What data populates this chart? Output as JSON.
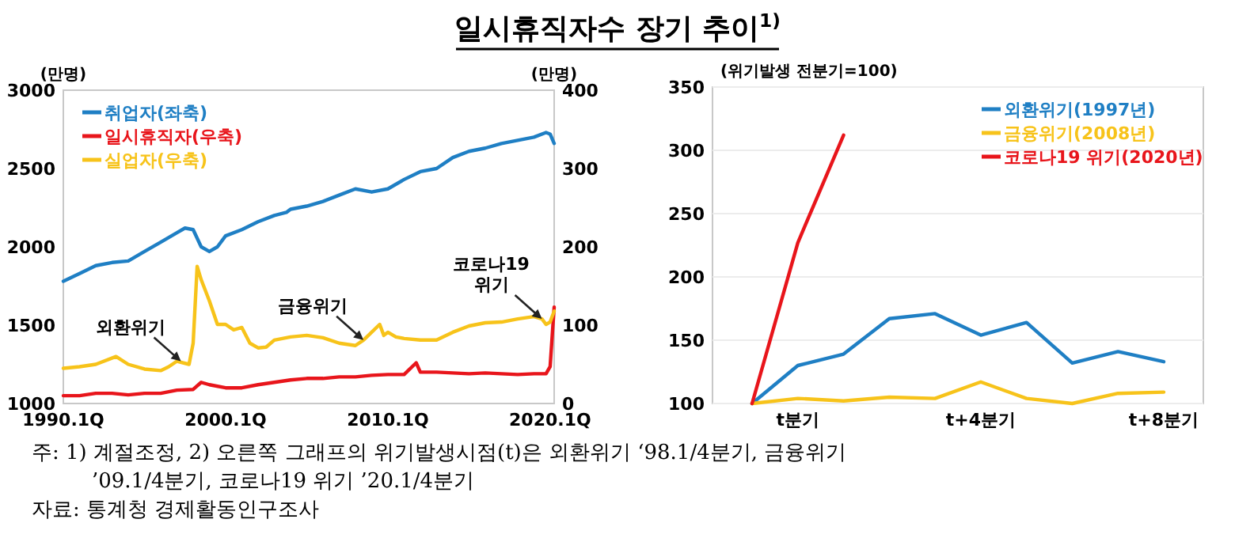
{
  "chart_data": [
    {
      "type": "line",
      "title": "일시휴직자수 장기 추이$^{1)}$",
      "ylabel": "(만명)",
      "y2label": "(만명)",
      "xlim": [
        "1990-01",
        "2020-04"
      ],
      "xticks": [
        {
          "value": "1990-01",
          "label": "1990.1Q"
        },
        {
          "value": "2000-01",
          "label": "2000.1Q"
        },
        {
          "value": "2010-01",
          "label": "2010.1Q"
        },
        {
          "value": "2020-01",
          "label": "2020.1Q"
        }
      ],
      "ylim": [
        1000,
        3000
      ],
      "yticks": [
        1000,
        1500,
        2000,
        2500,
        3000
      ],
      "y2lim": [
        0,
        400
      ],
      "y2ticks": [
        0,
        100,
        200,
        300,
        400
      ],
      "legend": "top left",
      "series": [
        {
          "name": "취업자(좌축)",
          "color": "#1f7fc4",
          "x": [
            "1990-01",
            "1991-01",
            "1992-01",
            "1993-01",
            "1994-01",
            "1995-01",
            "1996-01",
            "1997-01",
            "1997-07",
            "1998-01",
            "1998-07",
            "1999-01",
            "1999-07",
            "2000-01",
            "2001-01",
            "2002-01",
            "2003-01",
            "2003-10",
            "2004-01",
            "2005-01",
            "2006-01",
            "2007-01",
            "2008-01",
            "2009-01",
            "2010-01",
            "2011-01",
            "2012-01",
            "2013-01",
            "2014-01",
            "2015-01",
            "2016-01",
            "2017-01",
            "2018-01",
            "2019-01",
            "2019-10",
            "2020-01",
            "2020-04"
          ],
          "values": [
            1780,
            1830,
            1880,
            1900,
            1910,
            1970,
            2030,
            2090,
            2120,
            2110,
            2000,
            1970,
            2000,
            2070,
            2110,
            2160,
            2200,
            2220,
            2240,
            2260,
            2290,
            2330,
            2370,
            2350,
            2370,
            2430,
            2480,
            2500,
            2570,
            2610,
            2630,
            2660,
            2680,
            2700,
            2730,
            2720,
            2660
          ]
        },
        {
          "name": "일시휴직자(우축)",
          "color": "#e8151b",
          "axis": "y2",
          "x": [
            "1990-01",
            "1991-01",
            "1992-01",
            "1993-01",
            "1994-01",
            "1995-01",
            "1996-01",
            "1997-01",
            "1998-01",
            "1998-07",
            "1999-01",
            "2000-01",
            "2001-01",
            "2002-01",
            "2003-01",
            "2004-01",
            "2005-01",
            "2006-01",
            "2007-01",
            "2008-01",
            "2009-01",
            "2010-01",
            "2011-01",
            "2011-10",
            "2012-01",
            "2013-01",
            "2014-01",
            "2015-01",
            "2016-01",
            "2017-01",
            "2018-01",
            "2019-01",
            "2019-10",
            "2020-01",
            "2020-04"
          ],
          "values": [
            10,
            10,
            13,
            13,
            11,
            13,
            13,
            17,
            18,
            27,
            24,
            20,
            20,
            24,
            27,
            30,
            32,
            32,
            34,
            34,
            36,
            37,
            37,
            52,
            40,
            40,
            39,
            38,
            39,
            38,
            37,
            38,
            38,
            47,
            123
          ]
        },
        {
          "name": "실업자(우축)",
          "color": "#f7c31a",
          "axis": "y2",
          "x": [
            "1990-01",
            "1991-01",
            "1992-01",
            "1993-04",
            "1994-01",
            "1995-01",
            "1996-01",
            "1996-07",
            "1997-01",
            "1997-10",
            "1998-01",
            "1998-04",
            "1998-07",
            "1999-01",
            "1999-07",
            "2000-01",
            "2000-07",
            "2001-01",
            "2001-07",
            "2002-01",
            "2002-07",
            "2003-01",
            "2004-01",
            "2005-01",
            "2006-01",
            "2007-01",
            "2008-01",
            "2008-07",
            "2009-01",
            "2009-07",
            "2009-10",
            "2010-01",
            "2010-07",
            "2011-01",
            "2012-01",
            "2013-01",
            "2014-01",
            "2015-01",
            "2016-01",
            "2017-01",
            "2018-01",
            "2019-01",
            "2019-07",
            "2019-10",
            "2020-01",
            "2020-04"
          ],
          "values": [
            45,
            47,
            50,
            60,
            50,
            44,
            42,
            47,
            54,
            50,
            77,
            175,
            158,
            131,
            101,
            101,
            94,
            97,
            77,
            71,
            72,
            81,
            85,
            87,
            84,
            77,
            74,
            81,
            91,
            101,
            87,
            91,
            85,
            83,
            81,
            81,
            91,
            99,
            103,
            104,
            108,
            111,
            108,
            101,
            104,
            118
          ]
        }
      ],
      "annotations": [
        {
          "text": "외환위기",
          "x": "1997-04",
          "y": 1270
        },
        {
          "text": "금융위기",
          "x": "2008-07",
          "y": 1405
        },
        {
          "text": "코로나19\n위기",
          "x": "2019-07",
          "y": 1540
        },
        "주: 1) 계절조정,   2) 오른쪽 그래프의 위기발생시점(t)은 외환위기 ‘98.1/4분기, 금융위기",
        "’09.1/4분기, 코로나19 위기 ’20.1/4분기",
        "자료: 통계청 경제활동인구조사"
      ]
    },
    {
      "type": "line",
      "ylabel": "(위기발생 전분기=100)",
      "categories": [
        null,
        "t분기",
        null,
        null,
        null,
        "t+4분기",
        null,
        null,
        null,
        "t+8분기"
      ],
      "ylim": [
        100,
        350
      ],
      "yticks": [
        100,
        150,
        200,
        250,
        300,
        350
      ],
      "grid": "y",
      "legend": "top right",
      "series": [
        {
          "name": "외환위기(1997년)",
          "color": "#1f7fc4",
          "values": [
            100,
            130,
            139,
            167,
            171,
            154,
            164,
            132,
            141,
            133
          ]
        },
        {
          "name": "금융위기(2008년)",
          "color": "#f7c31a",
          "values": [
            100,
            104,
            102,
            105,
            104,
            117,
            104,
            100,
            108,
            109
          ]
        },
        {
          "name": "코로나19 위기(2020년)",
          "color": "#e8151b",
          "values": [
            100,
            227,
            312,
            null,
            null,
            null,
            null,
            null,
            null,
            null
          ]
        }
      ]
    }
  ]
}
